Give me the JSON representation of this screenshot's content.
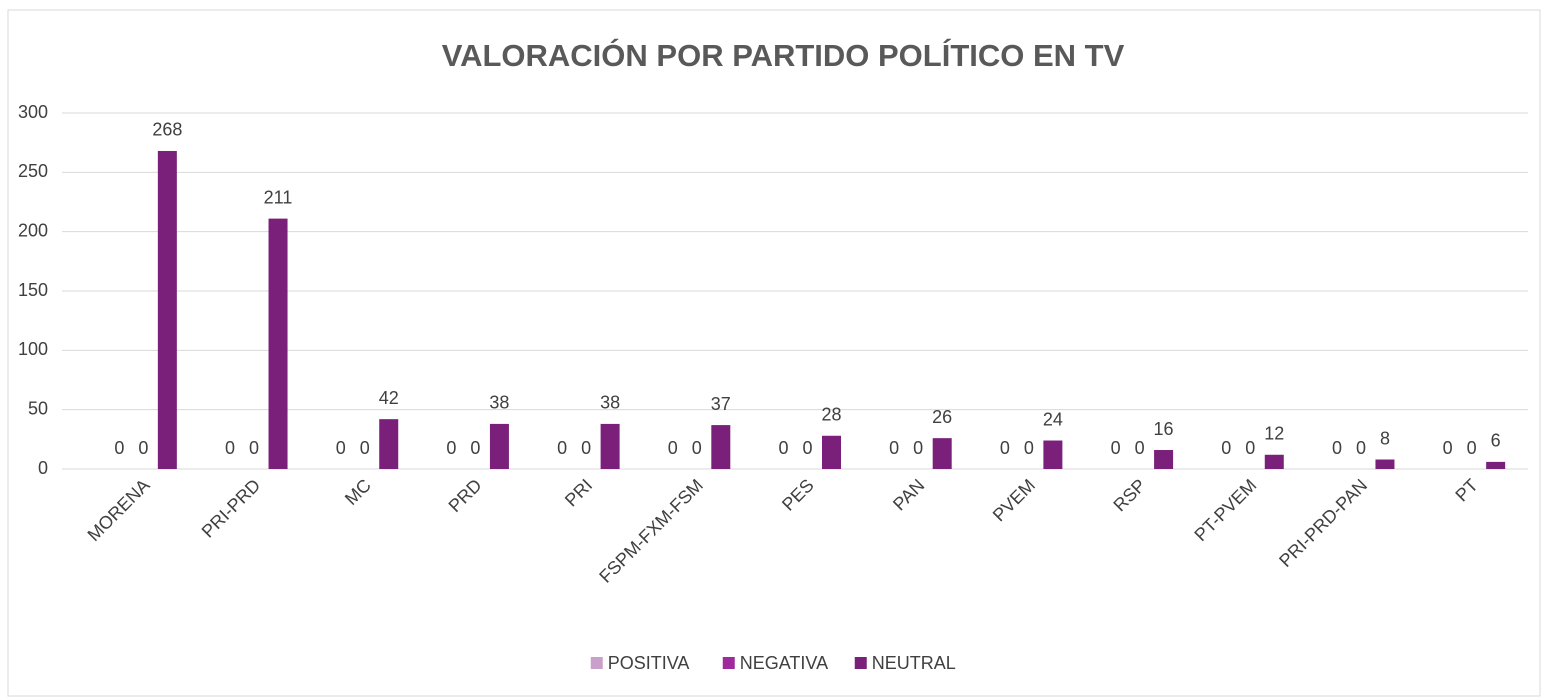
{
  "chart_data": {
    "type": "bar",
    "title": "VALORACIÓN POR PARTIDO POLÍTICO EN TV",
    "categories": [
      "MORENA",
      "PRI-PRD",
      "MC",
      "PRD",
      "PRI",
      "FSPM-FXM-FSM",
      "PES",
      "PAN",
      "PVEM",
      "RSP",
      "PT-PVEM",
      "PRI-PRD-PAN",
      "PT"
    ],
    "series": [
      {
        "name": "POSITIVA",
        "color": "#c9a0c9",
        "values": [
          0,
          0,
          0,
          0,
          0,
          0,
          0,
          0,
          0,
          0,
          0,
          0,
          0
        ]
      },
      {
        "name": "NEGATIVA",
        "color": "#9e2a9e",
        "values": [
          0,
          0,
          0,
          0,
          0,
          0,
          0,
          0,
          0,
          0,
          0,
          0,
          0
        ]
      },
      {
        "name": "NEUTRAL",
        "color": "#7a1f7a",
        "values": [
          268,
          211,
          42,
          38,
          38,
          37,
          28,
          26,
          24,
          16,
          12,
          8,
          6
        ]
      }
    ],
    "ylim": [
      0,
      300
    ],
    "yticks": [
      0,
      50,
      100,
      150,
      200,
      250,
      300
    ],
    "grid": true,
    "legend": "bottom"
  }
}
